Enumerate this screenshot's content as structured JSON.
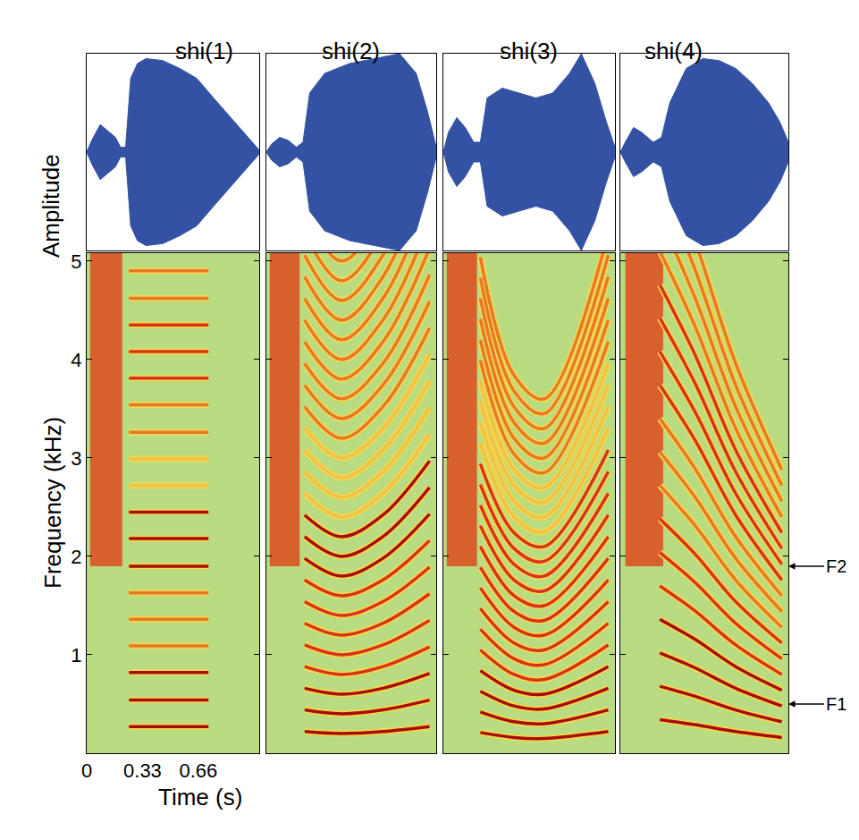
{
  "chart_data": {
    "type": "spectrogram",
    "x_label": "Time (s)",
    "amplitude_label": "Amplitude",
    "y_label": "Frequency (kHz)",
    "xlim": [
      0,
      1.02
    ],
    "xticks": [
      0,
      0.33,
      0.66
    ],
    "ylim": [
      0,
      5.08
    ],
    "yticks": [
      1,
      2,
      3,
      4,
      5
    ],
    "amplitude_ylim": [
      -1,
      1
    ],
    "waveform_color": "#3452a4",
    "frication_color": "#dd4a1e",
    "annotations": [
      {
        "text": "F2",
        "f": 1.9
      },
      {
        "text": "F1",
        "f": 0.5
      }
    ],
    "panels": [
      {
        "title": "shi(1)",
        "waveform": {
          "t": [
            0,
            0.03,
            0.08,
            0.12,
            0.17,
            0.2,
            0.23,
            0.26,
            0.3,
            0.35,
            0.45,
            0.55,
            0.65,
            0.75,
            0.85,
            0.95,
            1.02
          ],
          "upper": [
            0,
            0.12,
            0.28,
            0.22,
            0.15,
            0.05,
            0.05,
            0.75,
            0.9,
            0.95,
            0.93,
            0.85,
            0.75,
            0.55,
            0.35,
            0.15,
            0.02
          ],
          "lower": [
            0,
            -0.12,
            -0.28,
            -0.22,
            -0.15,
            -0.05,
            -0.05,
            -0.75,
            -0.9,
            -0.95,
            -0.93,
            -0.85,
            -0.75,
            -0.55,
            -0.35,
            -0.15,
            -0.02
          ]
        },
        "frication": {
          "t": [
            0.02,
            0.21
          ],
          "f": [
            1.9,
            5.08
          ]
        },
        "harmonic_t": [
          0.25,
          0.72
        ],
        "harmonics": [
          [
            0.27,
            0.27
          ],
          [
            0.54,
            0.54
          ],
          [
            0.82,
            0.82
          ],
          [
            1.09,
            1.09
          ],
          [
            1.36,
            1.36
          ],
          [
            1.63,
            1.63
          ],
          [
            1.9,
            1.9
          ],
          [
            2.18,
            2.18
          ],
          [
            2.45,
            2.45
          ],
          [
            2.72,
            2.72
          ],
          [
            2.99,
            2.99
          ],
          [
            3.26,
            3.26
          ],
          [
            3.54,
            3.54
          ],
          [
            3.81,
            3.81
          ],
          [
            4.08,
            4.08
          ],
          [
            4.35,
            4.35
          ],
          [
            4.62,
            4.62
          ],
          [
            4.9,
            4.9
          ]
        ],
        "colors": [
          "#a80d0d",
          "#a80d0d",
          "#a80d0d",
          "#e8772a",
          "#e8772a",
          "#e8772a",
          "#a80d0d",
          "#a80d0d",
          "#a80d0d",
          "#efc24a",
          "#efc24a",
          "#e8772a",
          "#e8772a",
          "#d8321c",
          "#d8321c",
          "#d8321c",
          "#e8772a",
          "#e8772a"
        ]
      },
      {
        "title": "shi(2)",
        "waveform": {
          "t": [
            0,
            0.03,
            0.08,
            0.13,
            0.18,
            0.22,
            0.26,
            0.35,
            0.5,
            0.65,
            0.8,
            0.9,
            0.97,
            1.02
          ],
          "upper": [
            0,
            0.08,
            0.15,
            0.12,
            0.05,
            0.1,
            0.6,
            0.8,
            0.9,
            0.95,
            1.0,
            0.8,
            0.4,
            0.05
          ],
          "lower": [
            0,
            -0.08,
            -0.15,
            -0.12,
            -0.05,
            -0.1,
            -0.6,
            -0.8,
            -0.9,
            -0.95,
            -1.0,
            -0.8,
            -0.4,
            -0.05
          ]
        },
        "frication": {
          "t": [
            0.02,
            0.2
          ],
          "f": [
            1.9,
            5.08
          ]
        },
        "harmonic_t": [
          0.23,
          0.45,
          0.7,
          0.98
        ],
        "harmonics": [
          [
            0.22,
            0.2,
            0.22,
            0.27
          ],
          [
            0.44,
            0.4,
            0.44,
            0.54
          ],
          [
            0.66,
            0.6,
            0.66,
            0.81
          ],
          [
            0.88,
            0.8,
            0.88,
            1.08
          ],
          [
            1.1,
            1.0,
            1.1,
            1.35
          ],
          [
            1.32,
            1.2,
            1.32,
            1.62
          ],
          [
            1.54,
            1.4,
            1.54,
            1.89
          ],
          [
            1.76,
            1.6,
            1.76,
            2.16
          ],
          [
            1.98,
            1.8,
            1.98,
            2.43
          ],
          [
            2.2,
            2.0,
            2.2,
            2.7
          ],
          [
            2.42,
            2.2,
            2.42,
            2.97
          ],
          [
            2.64,
            2.4,
            2.64,
            3.24
          ],
          [
            2.86,
            2.6,
            2.86,
            3.51
          ],
          [
            3.08,
            2.8,
            3.08,
            3.78
          ],
          [
            3.3,
            3.0,
            3.3,
            4.05
          ],
          [
            3.52,
            3.2,
            3.52,
            4.32
          ],
          [
            3.74,
            3.4,
            3.74,
            4.59
          ],
          [
            3.96,
            3.6,
            3.96,
            4.86
          ],
          [
            4.18,
            3.8,
            4.18,
            5.13
          ],
          [
            4.4,
            4.0,
            4.4,
            5.4
          ],
          [
            4.62,
            4.2,
            4.62,
            5.67
          ],
          [
            4.84,
            4.4,
            4.84,
            5.94
          ],
          [
            5.06,
            4.6,
            5.06,
            6.21
          ],
          [
            5.28,
            4.8,
            5.28,
            6.48
          ],
          [
            5.5,
            5.0,
            5.5,
            6.75
          ]
        ],
        "colors": [
          "#a80d0d",
          "#a80d0d",
          "#a80d0d",
          "#d8321c",
          "#d8321c",
          "#d8321c",
          "#d8321c",
          "#d8321c",
          "#a80d0d",
          "#a80d0d",
          "#a80d0d",
          "#efc24a",
          "#efc24a",
          "#efc24a",
          "#efc24a",
          "#e8772a",
          "#e8772a",
          "#e8772a",
          "#e8772a",
          "#e8772a",
          "#e8772a",
          "#e8772a",
          "#e8772a",
          "#e8772a",
          "#e8772a"
        ]
      },
      {
        "title": "shi(3)",
        "waveform": {
          "t": [
            0,
            0.03,
            0.08,
            0.13,
            0.18,
            0.22,
            0.26,
            0.35,
            0.45,
            0.55,
            0.65,
            0.75,
            0.82,
            0.9,
            0.97,
            1.02
          ],
          "upper": [
            0,
            0.2,
            0.35,
            0.25,
            0.1,
            0.1,
            0.55,
            0.65,
            0.6,
            0.55,
            0.6,
            0.8,
            1.0,
            0.7,
            0.3,
            0.05
          ],
          "lower": [
            0,
            -0.2,
            -0.35,
            -0.25,
            -0.1,
            -0.1,
            -0.55,
            -0.65,
            -0.6,
            -0.55,
            -0.6,
            -0.8,
            -1.0,
            -0.7,
            -0.3,
            -0.05
          ]
        },
        "frication": {
          "t": [
            0.02,
            0.2
          ],
          "f": [
            1.9,
            5.08
          ]
        },
        "harmonic_t": [
          0.22,
          0.42,
          0.6,
          0.98
        ],
        "harmonics": [
          [
            0.21,
            0.16,
            0.15,
            0.22
          ],
          [
            0.42,
            0.32,
            0.3,
            0.44
          ],
          [
            0.63,
            0.48,
            0.45,
            0.66
          ],
          [
            0.84,
            0.64,
            0.6,
            0.88
          ],
          [
            1.05,
            0.8,
            0.75,
            1.1
          ],
          [
            1.26,
            0.96,
            0.9,
            1.32
          ],
          [
            1.47,
            1.12,
            1.05,
            1.54
          ],
          [
            1.68,
            1.28,
            1.2,
            1.76
          ],
          [
            1.89,
            1.44,
            1.35,
            1.98
          ],
          [
            2.1,
            1.6,
            1.5,
            2.2
          ],
          [
            2.31,
            1.76,
            1.65,
            2.42
          ],
          [
            2.52,
            1.92,
            1.8,
            2.64
          ],
          [
            2.73,
            2.08,
            1.95,
            2.86
          ],
          [
            2.94,
            2.24,
            2.1,
            3.08
          ],
          [
            3.15,
            2.4,
            2.25,
            3.3
          ],
          [
            3.36,
            2.56,
            2.4,
            3.52
          ],
          [
            3.57,
            2.72,
            2.55,
            3.74
          ],
          [
            3.78,
            2.88,
            2.7,
            3.96
          ],
          [
            3.99,
            3.04,
            2.85,
            4.18
          ],
          [
            4.2,
            3.2,
            3.0,
            4.4
          ],
          [
            4.41,
            3.36,
            3.15,
            4.62
          ],
          [
            4.62,
            3.52,
            3.3,
            4.84
          ],
          [
            4.83,
            3.68,
            3.45,
            5.06
          ],
          [
            5.04,
            3.84,
            3.6,
            5.28
          ]
        ],
        "colors": [
          "#a80d0d",
          "#a80d0d",
          "#a80d0d",
          "#a80d0d",
          "#d8321c",
          "#d8321c",
          "#d8321c",
          "#d8321c",
          "#d8321c",
          "#d8321c",
          "#d8321c",
          "#d8321c",
          "#d8321c",
          "#d8321c",
          "#efc24a",
          "#efc24a",
          "#efc24a",
          "#efc24a",
          "#e8772a",
          "#e8772a",
          "#e8772a",
          "#e8772a",
          "#e8772a",
          "#e8772a"
        ]
      },
      {
        "title": "shi(4)",
        "waveform": {
          "t": [
            0,
            0.03,
            0.08,
            0.13,
            0.2,
            0.25,
            0.3,
            0.4,
            0.5,
            0.6,
            0.7,
            0.8,
            0.9,
            0.97,
            1.02
          ],
          "upper": [
            0,
            0.1,
            0.25,
            0.2,
            0.1,
            0.15,
            0.5,
            0.85,
            0.95,
            0.93,
            0.85,
            0.7,
            0.5,
            0.3,
            0.1
          ],
          "lower": [
            0,
            -0.1,
            -0.25,
            -0.2,
            -0.1,
            -0.15,
            -0.5,
            -0.85,
            -0.95,
            -0.93,
            -0.85,
            -0.7,
            -0.5,
            -0.3,
            -0.1
          ]
        },
        "frication": {
          "t": [
            0.03,
            0.26
          ],
          "f": [
            1.9,
            5.08
          ]
        },
        "harmonic_t": [
          0.24,
          0.45,
          0.7,
          0.98
        ],
        "harmonics": [
          [
            0.34,
            0.29,
            0.22,
            0.16
          ],
          [
            0.68,
            0.58,
            0.44,
            0.32
          ],
          [
            1.02,
            0.87,
            0.66,
            0.48
          ],
          [
            1.36,
            1.16,
            0.88,
            0.64
          ],
          [
            1.7,
            1.45,
            1.1,
            0.8
          ],
          [
            2.04,
            1.74,
            1.32,
            0.96
          ],
          [
            2.38,
            2.03,
            1.54,
            1.12
          ],
          [
            2.72,
            2.32,
            1.76,
            1.28
          ],
          [
            3.06,
            2.61,
            1.98,
            1.44
          ],
          [
            3.4,
            2.9,
            2.2,
            1.6
          ],
          [
            3.74,
            3.19,
            2.42,
            1.76
          ],
          [
            4.08,
            3.48,
            2.64,
            1.92
          ],
          [
            4.42,
            3.77,
            2.86,
            2.08
          ],
          [
            4.76,
            4.06,
            3.08,
            2.24
          ],
          [
            5.1,
            4.35,
            3.3,
            2.4
          ],
          [
            5.44,
            4.64,
            3.52,
            2.56
          ],
          [
            5.78,
            4.93,
            3.74,
            2.72
          ],
          [
            6.12,
            5.22,
            3.96,
            2.88
          ]
        ],
        "colors": [
          "#a80d0d",
          "#a80d0d",
          "#a80d0d",
          "#a80d0d",
          "#d8321c",
          "#d8321c",
          "#d8321c",
          "#e8772a",
          "#e8772a",
          "#e8772a",
          "#d8321c",
          "#d8321c",
          "#d8321c",
          "#d8321c",
          "#e8772a",
          "#e8772a",
          "#e8772a",
          "#e8772a"
        ]
      }
    ]
  }
}
